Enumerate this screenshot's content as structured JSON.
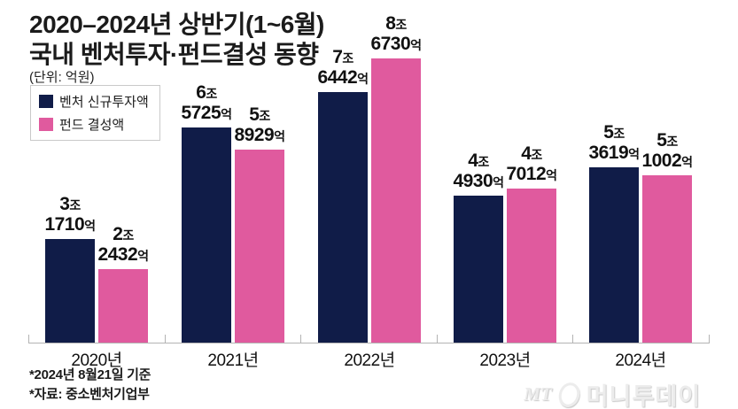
{
  "header": {
    "title_line1": "2020–2024년 상반기(1~6월)",
    "title_line2": "국내 벤처투자·펀드결성 동향",
    "unit": "(단위: 억원)"
  },
  "colors": {
    "venture_navy": "#101c48",
    "fund_pink": "#e05a9e",
    "axis_gray": "#b3b3b3"
  },
  "chart_data": {
    "type": "bar",
    "title": "2020–2024년 상반기(1~6월) 국내 벤처투자·펀드결성 동향",
    "unit": "억원",
    "categories": [
      "2020년",
      "2021년",
      "2022년",
      "2023년",
      "2024년"
    ],
    "series": [
      {
        "name": "벤처 신규투자액",
        "color": "#101c48",
        "values": [
          31710,
          65725,
          76442,
          44930,
          53619
        ],
        "value_labels": [
          [
            "3조",
            "1710억"
          ],
          [
            "6조",
            "5725억"
          ],
          [
            "7조",
            "6442억"
          ],
          [
            "4조",
            "4930억"
          ],
          [
            "5조",
            "3619억"
          ]
        ]
      },
      {
        "name": "펀드 결성액",
        "color": "#e05a9e",
        "values": [
          22432,
          58929,
          86730,
          47012,
          51002
        ],
        "value_labels": [
          [
            "2조",
            "2432억"
          ],
          [
            "5조",
            "8929억"
          ],
          [
            "8조",
            "6730억"
          ],
          [
            "4조",
            "7012억"
          ],
          [
            "5조",
            "1002억"
          ]
        ]
      }
    ],
    "ylim": [
      0,
      90000
    ],
    "grid": false,
    "legend_position": "top-left"
  },
  "footnotes": [
    "*2024년 8월21일 기준",
    "*자료: 중소벤처기업부"
  ],
  "watermark": {
    "prefix": "MT",
    "brand": "머니투데이"
  }
}
